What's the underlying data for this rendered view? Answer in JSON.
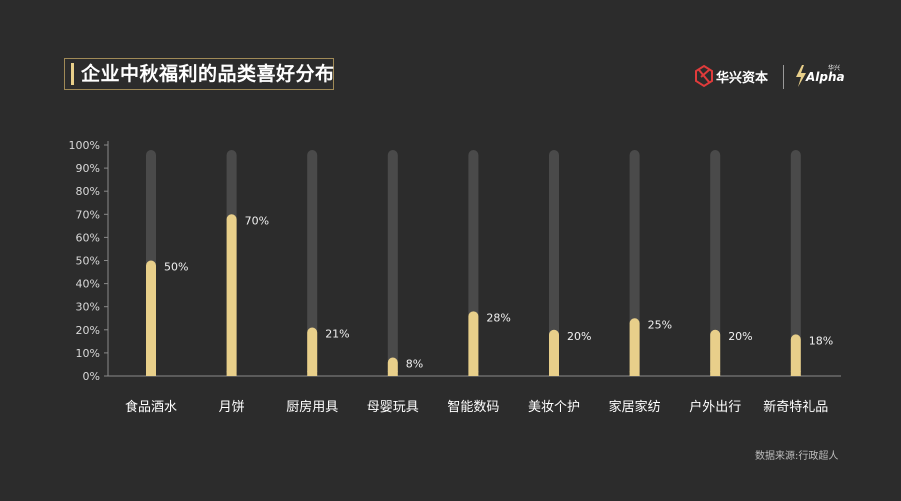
{
  "header": {
    "title": "企业中秋福利的品类喜好分布"
  },
  "logo": {
    "brand_text": "华兴资本",
    "alpha_text": "Alpha",
    "alpha_tag": "华兴",
    "icon": "huaxing-logo-icon",
    "alpha_icon": "lightning-icon"
  },
  "footer": {
    "source": "数据来源:行政超人"
  },
  "colors": {
    "background": "#2c2c2c",
    "bar_fill": "#e8cf8a",
    "bar_track": "#4a4a4a",
    "accent": "#a08a57",
    "logo_red": "#e03b3b"
  },
  "chart_data": {
    "type": "bar",
    "title": "企业中秋福利的品类喜好分布",
    "categories": [
      "食品酒水",
      "月饼",
      "厨房用具",
      "母婴玩具",
      "智能数码",
      "美妆个护",
      "家居家纺",
      "户外出行",
      "新奇特礼品"
    ],
    "values": [
      50,
      70,
      21,
      8,
      28,
      20,
      25,
      20,
      18
    ],
    "value_labels": [
      "50%",
      "70%",
      "21%",
      "8%",
      "28%",
      "20%",
      "25%",
      "20%",
      "18%"
    ],
    "yticks": [
      "0%",
      "10%",
      "20%",
      "30%",
      "40%",
      "50%",
      "60%",
      "70%",
      "80%",
      "90%",
      "100%"
    ],
    "ylim": [
      0,
      100
    ],
    "xlabel": "",
    "ylabel": "",
    "grid": false,
    "legend": "none"
  }
}
